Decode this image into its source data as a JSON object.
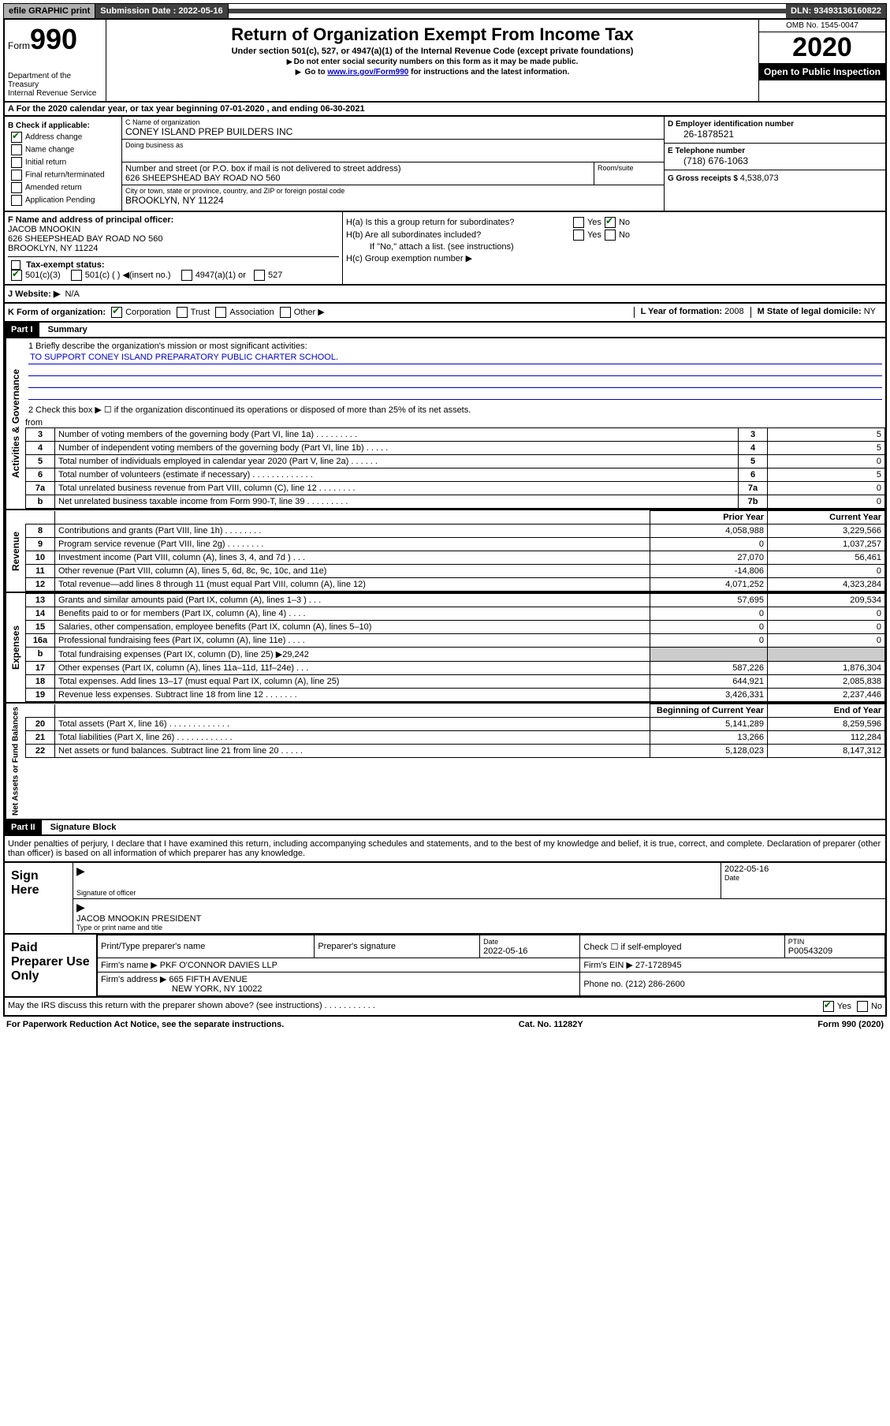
{
  "topbar": {
    "efile": "efile GRAPHIC print",
    "submission_label": "Submission Date : 2022-05-16",
    "dln": "DLN: 93493136160822"
  },
  "header": {
    "form_word": "Form",
    "form_num": "990",
    "dept1": "Department of the Treasury",
    "dept2": "Internal Revenue Service",
    "title": "Return of Organization Exempt From Income Tax",
    "sub": "Under section 501(c), 527, or 4947(a)(1) of the Internal Revenue Code (except private foundations)",
    "note1": "Do not enter social security numbers on this form as it may be made public.",
    "note2_pre": "Go to ",
    "note2_link": "www.irs.gov/Form990",
    "note2_post": " for instructions and the latest information.",
    "omb": "OMB No. 1545-0047",
    "year": "2020",
    "open": "Open to Public Inspection"
  },
  "row_a": "A  For the 2020 calendar year, or tax year beginning 07-01-2020    , and ending 06-30-2021",
  "col_b": {
    "title": "B Check if applicable:",
    "items": [
      "Address change",
      "Name change",
      "Initial return",
      "Final return/terminated",
      "Amended return",
      "Application Pending"
    ]
  },
  "col_c": {
    "name_lbl": "C Name of organization",
    "name": "CONEY ISLAND PREP BUILDERS INC",
    "dba_lbl": "Doing business as",
    "addr_lbl": "Number and street (or P.O. box if mail is not delivered to street address)",
    "addr": "626 SHEEPSHEAD BAY ROAD NO 560",
    "room_lbl": "Room/suite",
    "city_lbl": "City or town, state or province, country, and ZIP or foreign postal code",
    "city": "BROOKLYN, NY  11224"
  },
  "col_d": {
    "ein_lbl": "D Employer identification number",
    "ein": "26-1878521",
    "phone_lbl": "E Telephone number",
    "phone": "(718) 676-1063",
    "gross_lbl": "G Gross receipts $ ",
    "gross": "4,538,073"
  },
  "col_f": {
    "lbl": "F Name and address of principal officer:",
    "name": "JACOB MNOOKIN",
    "addr1": "626 SHEEPSHEAD BAY ROAD NO 560",
    "addr2": "BROOKLYN, NY  11224"
  },
  "tax_status": {
    "lbl": "Tax-exempt status:",
    "opt1": "501(c)(3)",
    "opt2": "501(c) (  ) ◀(insert no.)",
    "opt3": "4947(a)(1) or",
    "opt4": "527"
  },
  "col_h": {
    "ha": "H(a)  Is this a group return for subordinates?",
    "hb": "H(b)  Are all subordinates included?",
    "hb_note": "If \"No,\" attach a list. (see instructions)",
    "hc": "H(c)  Group exemption number ▶",
    "yes": "Yes",
    "no": "No"
  },
  "row_j": {
    "lbl": "J   Website: ▶",
    "val": "N/A"
  },
  "row_k": {
    "lbl": "K Form of organization:",
    "opts": [
      "Corporation",
      "Trust",
      "Association",
      "Other ▶"
    ],
    "l_lbl": "L Year of formation: ",
    "l_val": "2008",
    "m_lbl": "M State of legal domicile: ",
    "m_val": "NY"
  },
  "part1": {
    "header": "Part I",
    "title": "Summary",
    "q1_lbl": "1  Briefly describe the organization's mission or most significant activities:",
    "q1_val": "TO SUPPORT CONEY ISLAND PREPARATORY PUBLIC CHARTER SCHOOL.",
    "q2": "2   Check this box ▶ ☐  if the organization discontinued its operations or disposed of more than 25% of its net assets."
  },
  "governance": {
    "rows": [
      {
        "n": "3",
        "d": "Number of voting members of the governing body (Part VI, line 1a)   .    .    .    .    .    .    .    .    .",
        "c": "3",
        "v": "5"
      },
      {
        "n": "4",
        "d": "Number of independent voting members of the governing body (Part VI, line 1b)   .    .    .    .    .",
        "c": "4",
        "v": "5"
      },
      {
        "n": "5",
        "d": "Total number of individuals employed in calendar year 2020 (Part V, line 2a)   .    .    .    .    .    .",
        "c": "5",
        "v": "0"
      },
      {
        "n": "6",
        "d": "Total number of volunteers (estimate if necessary)   .    .    .    .    .    .    .    .    .    .    .    .    .",
        "c": "6",
        "v": "5"
      },
      {
        "n": "7a",
        "d": "Total unrelated business revenue from Part VIII, column (C), line 12   .    .    .    .    .    .    .    .",
        "c": "7a",
        "v": "0"
      },
      {
        "n": "b",
        "d": "Net unrelated business taxable income from Form 990-T, line 39   .    .    .    .    .    .    .    .    .",
        "c": "7b",
        "v": "0"
      }
    ]
  },
  "revenue": {
    "hdr_prior": "Prior Year",
    "hdr_curr": "Current Year",
    "rows": [
      {
        "n": "8",
        "d": "Contributions and grants (Part VIII, line 1h)   .    .    .    .    .    .    .    .",
        "p": "4,058,988",
        "c": "3,229,566"
      },
      {
        "n": "9",
        "d": "Program service revenue (Part VIII, line 2g)   .    .    .    .    .    .    .    .",
        "p": "0",
        "c": "1,037,257"
      },
      {
        "n": "10",
        "d": "Investment income (Part VIII, column (A), lines 3, 4, and 7d )   .    .    .",
        "p": "27,070",
        "c": "56,461"
      },
      {
        "n": "11",
        "d": "Other revenue (Part VIII, column (A), lines 5, 6d, 8c, 9c, 10c, and 11e)",
        "p": "-14,806",
        "c": "0"
      },
      {
        "n": "12",
        "d": "Total revenue—add lines 8 through 11 (must equal Part VIII, column (A), line 12)",
        "p": "4,071,252",
        "c": "4,323,284"
      }
    ]
  },
  "expenses": {
    "rows": [
      {
        "n": "13",
        "d": "Grants and similar amounts paid (Part IX, column (A), lines 1–3 )   .    .    .",
        "p": "57,695",
        "c": "209,534"
      },
      {
        "n": "14",
        "d": "Benefits paid to or for members (Part IX, column (A), line 4)   .    .    .    .",
        "p": "0",
        "c": "0"
      },
      {
        "n": "15",
        "d": "Salaries, other compensation, employee benefits (Part IX, column (A), lines 5–10)",
        "p": "0",
        "c": "0"
      },
      {
        "n": "16a",
        "d": "Professional fundraising fees (Part IX, column (A), line 11e)   .    .    .    .",
        "p": "0",
        "c": "0"
      },
      {
        "n": "b",
        "d": "Total fundraising expenses (Part IX, column (D), line 25) ▶29,242",
        "p": "",
        "c": ""
      },
      {
        "n": "17",
        "d": "Other expenses (Part IX, column (A), lines 11a–11d, 11f–24e)   .    .    .",
        "p": "587,226",
        "c": "1,876,304"
      },
      {
        "n": "18",
        "d": "Total expenses. Add lines 13–17 (must equal Part IX, column (A), line 25)",
        "p": "644,921",
        "c": "2,085,838"
      },
      {
        "n": "19",
        "d": "Revenue less expenses. Subtract line 18 from line 12   .    .    .    .    .    .    .",
        "p": "3,426,331",
        "c": "2,237,446"
      }
    ]
  },
  "netassets": {
    "hdr_begin": "Beginning of Current Year",
    "hdr_end": "End of Year",
    "rows": [
      {
        "n": "20",
        "d": "Total assets (Part X, line 16)   .    .    .    .    .    .    .    .    .    .    .    .    .",
        "p": "5,141,289",
        "c": "8,259,596"
      },
      {
        "n": "21",
        "d": "Total liabilities (Part X, line 26)   .    .    .    .    .    .    .    .    .    .    .    .",
        "p": "13,266",
        "c": "112,284"
      },
      {
        "n": "22",
        "d": "Net assets or fund balances. Subtract line 21 from line 20   .    .    .    .    .",
        "p": "5,128,023",
        "c": "8,147,312"
      }
    ]
  },
  "vlabels": {
    "gov": "Activities & Governance",
    "rev": "Revenue",
    "exp": "Expenses",
    "net": "Net Assets or Fund Balances"
  },
  "part2": {
    "header": "Part II",
    "title": "Signature Block",
    "decl": "Under penalties of perjury, I declare that I have examined this return, including accompanying schedules and statements, and to the best of my knowledge and belief, it is true, correct, and complete. Declaration of preparer (other than officer) is based on all information of which preparer has any knowledge."
  },
  "sign": {
    "label": "Sign Here",
    "sig_officer": "Signature of officer",
    "date_lbl": "Date",
    "date": "2022-05-16",
    "name": "JACOB MNOOKIN  PRESIDENT",
    "name_lbl": "Type or print name and title"
  },
  "paid": {
    "label": "Paid Preparer Use Only",
    "print_lbl": "Print/Type preparer's name",
    "sig_lbl": "Preparer's signature",
    "date_lbl": "Date",
    "date": "2022-05-16",
    "check_lbl": "Check ☐ if self-employed",
    "ptin_lbl": "PTIN",
    "ptin": "P00543209",
    "firm_name_lbl": "Firm's name    ▶",
    "firm_name": "PKF O'CONNOR DAVIES LLP",
    "firm_ein_lbl": "Firm's EIN ▶",
    "firm_ein": "27-1728945",
    "firm_addr_lbl": "Firm's address ▶",
    "firm_addr1": "665 FIFTH AVENUE",
    "firm_addr2": "NEW YORK, NY  10022",
    "phone_lbl": "Phone no. ",
    "phone": "(212) 286-2600"
  },
  "discuss": {
    "q": "May the IRS discuss this return with the preparer shown above? (see instructions)   .    .    .    .    .    .    .    .    .    .    .",
    "yes": "Yes",
    "no": "No"
  },
  "footer": {
    "paperwork": "For Paperwork Reduction Act Notice, see the separate instructions.",
    "cat": "Cat. No. 11282Y",
    "form": "Form 990 (2020)"
  }
}
